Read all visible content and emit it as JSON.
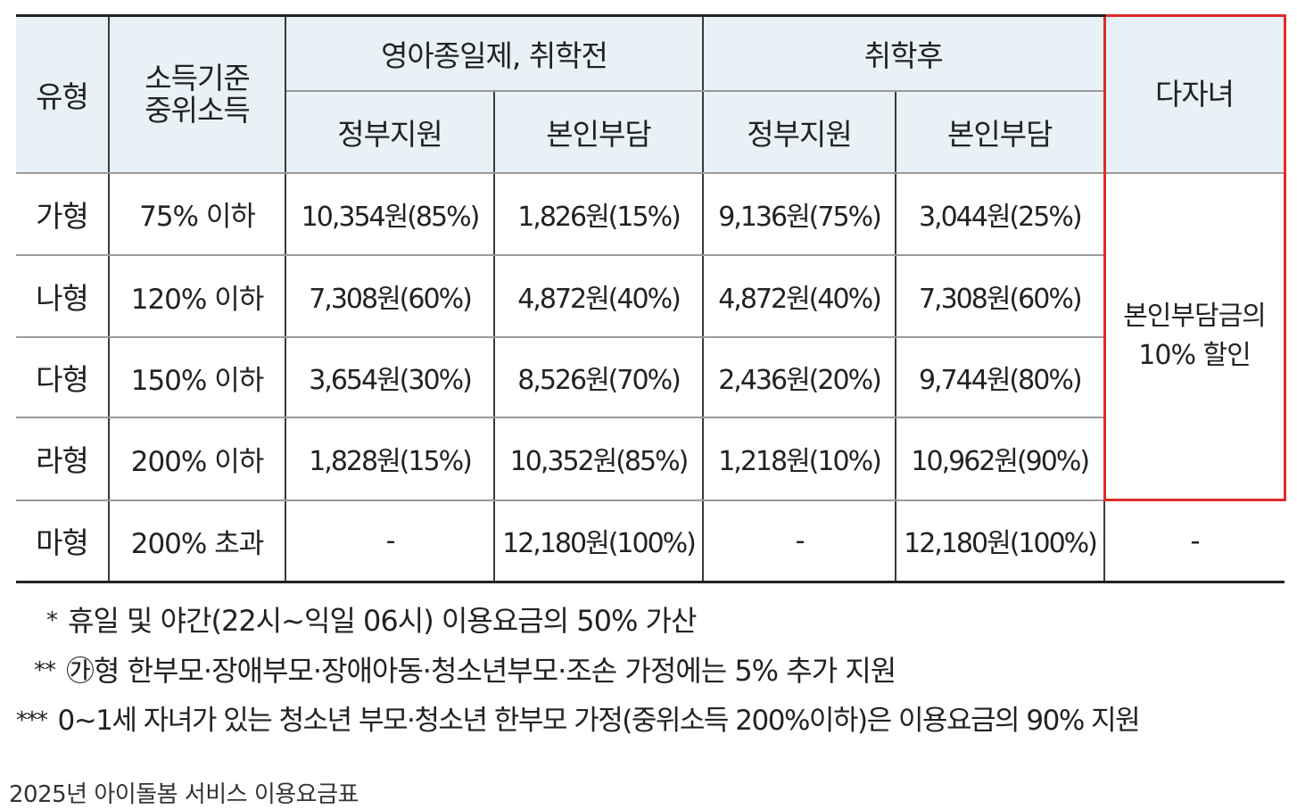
{
  "table": {
    "headers": {
      "type": "유형",
      "income": "소득기준\n중위소득",
      "before_school": "영아종일제, 취학전",
      "after_school": "취학후",
      "gov_support": "정부지원",
      "self_pay": "본인부담",
      "multi_child": "다자녀"
    },
    "rows": [
      {
        "type": "가형",
        "income": "75% 이하",
        "pre_gov": "10,354원(85%)",
        "pre_self": "1,826원(15%)",
        "post_gov": "9,136원(75%)",
        "post_self": "3,044원(25%)"
      },
      {
        "type": "나형",
        "income": "120% 이하",
        "pre_gov": "7,308원(60%)",
        "pre_self": "4,872원(40%)",
        "post_gov": "4,872원(40%)",
        "post_self": "7,308원(60%)"
      },
      {
        "type": "다형",
        "income": "150% 이하",
        "pre_gov": "3,654원(30%)",
        "pre_self": "8,526원(70%)",
        "post_gov": "2,436원(20%)",
        "post_self": "9,744원(80%)"
      },
      {
        "type": "라형",
        "income": "200% 이하",
        "pre_gov": "1,828원(15%)",
        "pre_self": "10,352원(85%)",
        "post_gov": "1,218원(10%)",
        "post_self": "10,962원(90%)"
      },
      {
        "type": "마형",
        "income": "200% 초과",
        "pre_gov": "-",
        "pre_self": "12,180원(100%)",
        "post_gov": "-",
        "post_self": "12,180원(100%)",
        "multi": "-"
      }
    ],
    "multi_child_discount": "본인부담금의 10% 할인"
  },
  "notes": [
    {
      "mark": "*",
      "text": "휴일 및 야간(22시~익일 06시) 이용요금의 50% 가산"
    },
    {
      "mark": "**",
      "text": "㉮형 한부모·장애부모·장애아동·청소년부모·조손 가정에는 5% 추가 지원"
    },
    {
      "mark": "***",
      "text": "0~1세 자녀가 있는 청소년 부모·청소년 한부모 가정(중위소득 200%이하)은 이용요금의 90% 지원"
    }
  ],
  "caption": "2025년 아이돌봄 서비스 이용요금표",
  "colors": {
    "header_bg": "#e7f1f6",
    "highlight_border": "#e02b2b"
  }
}
